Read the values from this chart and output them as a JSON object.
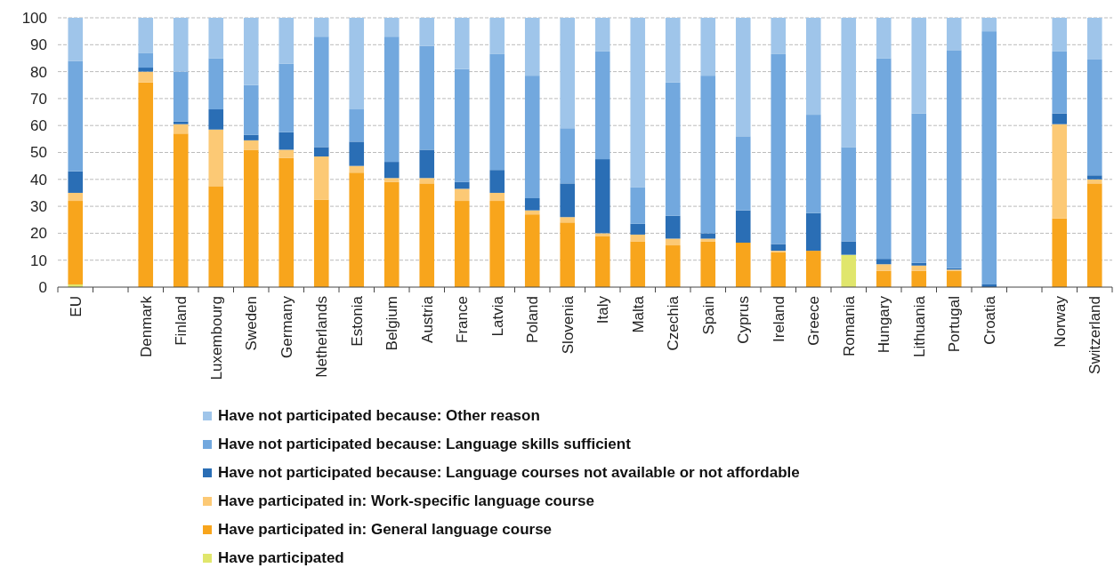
{
  "chart_data": {
    "type": "bar",
    "stacked": true,
    "grid": "y",
    "legend": "bottom",
    "categories": [
      "EU",
      null,
      "Denmark",
      "Finland",
      "Luxembourg",
      "Sweden",
      "Germany",
      "Netherlands",
      "Estonia",
      "Belgium",
      "Austria",
      "France",
      "Latvia",
      "Poland",
      "Slovenia",
      "Italy",
      "Malta",
      "Czechia",
      "Spain",
      "Cyprus",
      "Ireland",
      "Greece",
      "Romania",
      "Hungary",
      "Lithuania",
      "Portugal",
      "Croatia",
      null,
      "Norway",
      "Switzerland"
    ],
    "ylim": [
      0,
      100
    ],
    "yticks": [
      0,
      10,
      20,
      30,
      40,
      50,
      60,
      70,
      80,
      90,
      100
    ],
    "series": [
      {
        "name": "Have participated",
        "color": "#e0e66c",
        "values": [
          1,
          null,
          null,
          null,
          null,
          null,
          null,
          null,
          null,
          null,
          null,
          null,
          null,
          null,
          null,
          null,
          null,
          null,
          null,
          null,
          null,
          null,
          12,
          null,
          null,
          null,
          null,
          null,
          null,
          null
        ]
      },
      {
        "name": "Have participated in: General language course",
        "color": "#f8a51c",
        "values": [
          31,
          null,
          76,
          57,
          37.5,
          51,
          48,
          32.5,
          42.5,
          39,
          38.5,
          32,
          32,
          27,
          24,
          19,
          17,
          15.5,
          17,
          16.5,
          13,
          13.5,
          0,
          6,
          6,
          6,
          0,
          null,
          25.5,
          38.5
        ]
      },
      {
        "name": "Have participated in: Work-specific language course",
        "color": "#fcc975",
        "values": [
          3,
          null,
          4,
          3.5,
          21,
          3.5,
          3,
          16,
          2.5,
          1.5,
          2,
          4.5,
          3,
          1.5,
          2,
          1,
          2.5,
          2.5,
          1,
          0,
          0.5,
          0,
          0,
          2.5,
          2,
          0.5,
          0,
          null,
          35,
          1.5
        ]
      },
      {
        "name": "Have not participated because: Language courses not available or not affordable",
        "color": "#2a6eb5",
        "values": [
          8,
          null,
          1.5,
          1,
          7.5,
          2,
          6.5,
          3.5,
          9,
          6,
          10.5,
          2.5,
          8.5,
          4.5,
          12.5,
          27.5,
          4,
          8.5,
          2,
          12,
          2.5,
          14,
          5,
          2,
          1,
          0.5,
          1,
          null,
          4,
          1.5
        ]
      },
      {
        "name": "Have not participated because: Language skills sufficient",
        "color": "#72a8de",
        "values": [
          41,
          null,
          5.5,
          18.5,
          19,
          18.5,
          25.5,
          41,
          12,
          46.5,
          38.5,
          42,
          43,
          45.5,
          20.5,
          40,
          13.5,
          49.5,
          58.5,
          27.5,
          70.5,
          36.5,
          35,
          74.5,
          55.5,
          81,
          94,
          null,
          23,
          43
        ]
      },
      {
        "name": "Have not participated because: Other reason",
        "color": "#9fc5ea",
        "values": [
          16,
          null,
          13,
          20,
          15,
          25,
          17,
          7,
          34,
          7,
          10.5,
          19,
          13.5,
          21.5,
          41,
          12.5,
          63,
          24,
          21.5,
          44,
          13.5,
          36,
          48,
          15,
          35.5,
          12,
          5,
          null,
          12.5,
          15.5
        ]
      }
    ]
  }
}
